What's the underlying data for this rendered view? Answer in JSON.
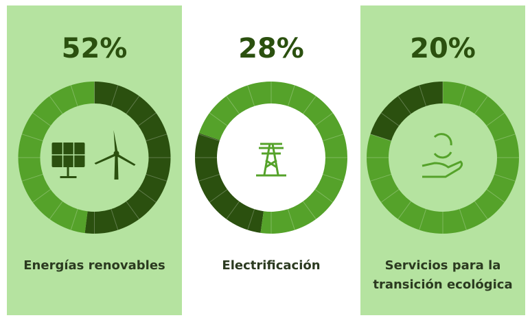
{
  "chart_data": [
    {
      "type": "donut",
      "label": "Energías renovables",
      "values": [
        52,
        48
      ],
      "value_labels": [
        "52%",
        null
      ],
      "colors": [
        "#2b500f",
        "#55a22a"
      ]
    },
    {
      "type": "donut",
      "label": "Electrificación",
      "values": [
        28,
        72
      ],
      "value_labels": [
        "28%",
        null
      ],
      "colors": [
        "#2b500f",
        "#55a22a"
      ]
    },
    {
      "type": "donut",
      "label": "Servicios para la transición ecológica",
      "values": [
        20,
        80
      ],
      "value_labels": [
        "20%",
        null
      ],
      "colors": [
        "#2b500f",
        "#55a22a"
      ]
    }
  ]
}
